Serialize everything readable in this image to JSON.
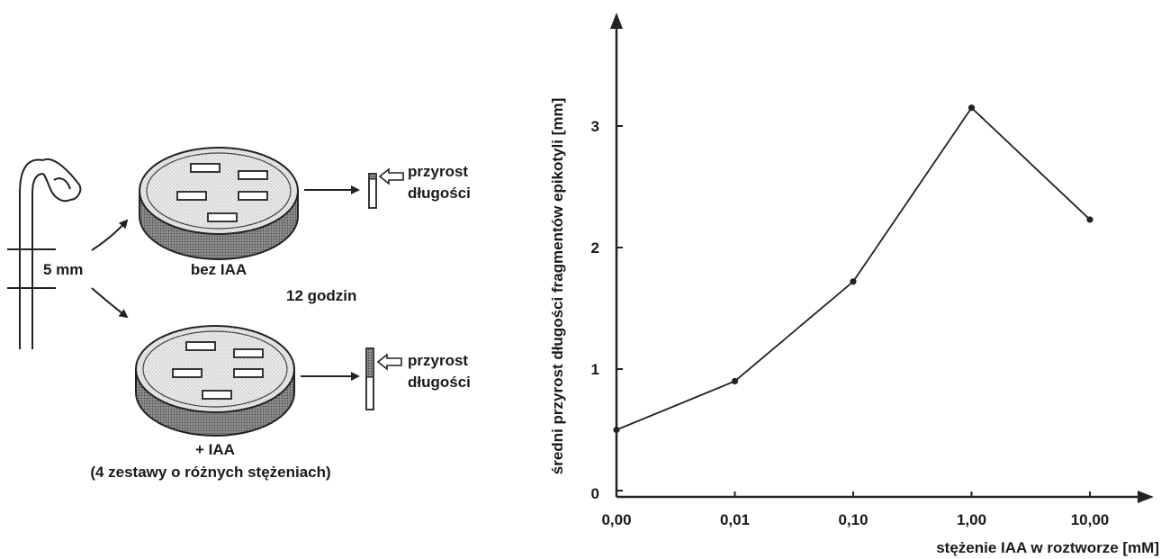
{
  "experiment": {
    "segment_label": "5 mm",
    "dish_control_label": "bez IAA",
    "dish_treatment_label": "+ IAA",
    "dish_treatment_note": "(4 zestawy o różnych stężeniach)",
    "duration_label": "12 godzin",
    "growth_label_line1": "przyrost",
    "growth_label_line2": "długości"
  },
  "chart_data": {
    "type": "line",
    "categories": [
      "0,00",
      "0,01",
      "0,10",
      "1,00",
      "10,00"
    ],
    "values": [
      0.5,
      0.9,
      1.72,
      3.15,
      2.23
    ],
    "xlabel": "stężenie IAA w roztworze [mM]",
    "ylabel": "średni przyrost długości fragmentów epikotyli [mm]",
    "yticks": [
      "0",
      "1",
      "2",
      "3"
    ],
    "ylim": [
      0,
      4
    ],
    "grid": false
  }
}
